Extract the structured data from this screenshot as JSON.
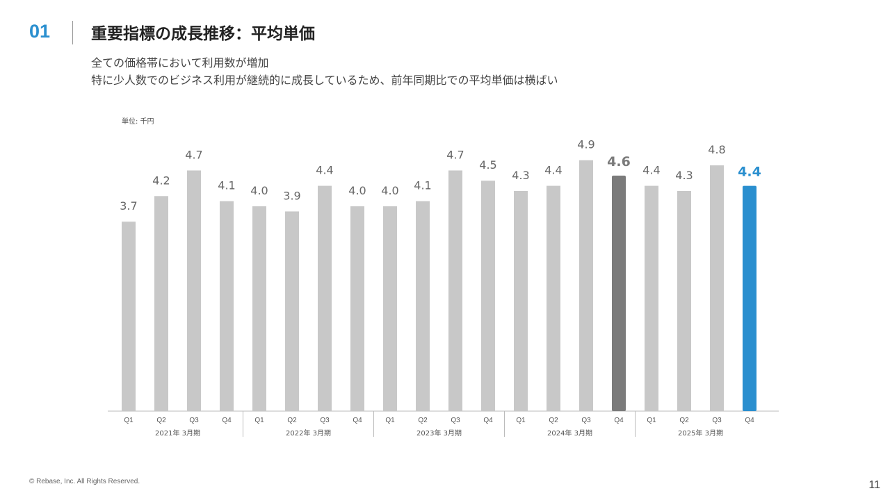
{
  "header": {
    "section_number": "01",
    "title": "重要指標の成長推移：平均単価",
    "subtitle_lines": [
      "全ての価格帯において利用数が増加",
      "特に少人数でのビジネス利用が継続的に成長しているため、前年同期比での平均単価は横ばい"
    ]
  },
  "chart_data": {
    "type": "bar",
    "unit_label": "単位: 千円",
    "ylim": [
      0,
      5.9
    ],
    "categories": [
      "Q1",
      "Q2",
      "Q3",
      "Q4",
      "Q1",
      "Q2",
      "Q3",
      "Q4",
      "Q1",
      "Q2",
      "Q3",
      "Q4",
      "Q1",
      "Q2",
      "Q3",
      "Q4",
      "Q1",
      "Q2",
      "Q3",
      "Q4"
    ],
    "groups": [
      "2021年 3月期",
      "2022年 3月期",
      "2023年 3月期",
      "2024年 3月期",
      "2025年 3月期"
    ],
    "values": [
      3.7,
      4.2,
      4.7,
      4.1,
      4.0,
      3.9,
      4.4,
      4.0,
      4.0,
      4.1,
      4.7,
      4.5,
      4.3,
      4.4,
      4.9,
      4.6,
      4.4,
      4.3,
      4.8,
      4.4
    ],
    "value_labels": [
      "3.7",
      "4.2",
      "4.7",
      "4.1",
      "4.0",
      "3.9",
      "4.4",
      "4.0",
      "4.0",
      "4.1",
      "4.7",
      "4.5",
      "4.3",
      "4.4",
      "4.9",
      "4.6",
      "4.4",
      "4.3",
      "4.8",
      "4.4"
    ],
    "highlights": {
      "15": "gray",
      "19": "blue"
    },
    "colors": {
      "default": "#c8c8c8",
      "gray": "#7b7b7b",
      "blue": "#2a8fcf",
      "label": "#666666",
      "axis": "#bbbbbb"
    },
    "grid": false,
    "legend": "none"
  },
  "footer": {
    "copyright": "© Rebase, Inc. All Rights Reserved.",
    "page_number": "11"
  }
}
